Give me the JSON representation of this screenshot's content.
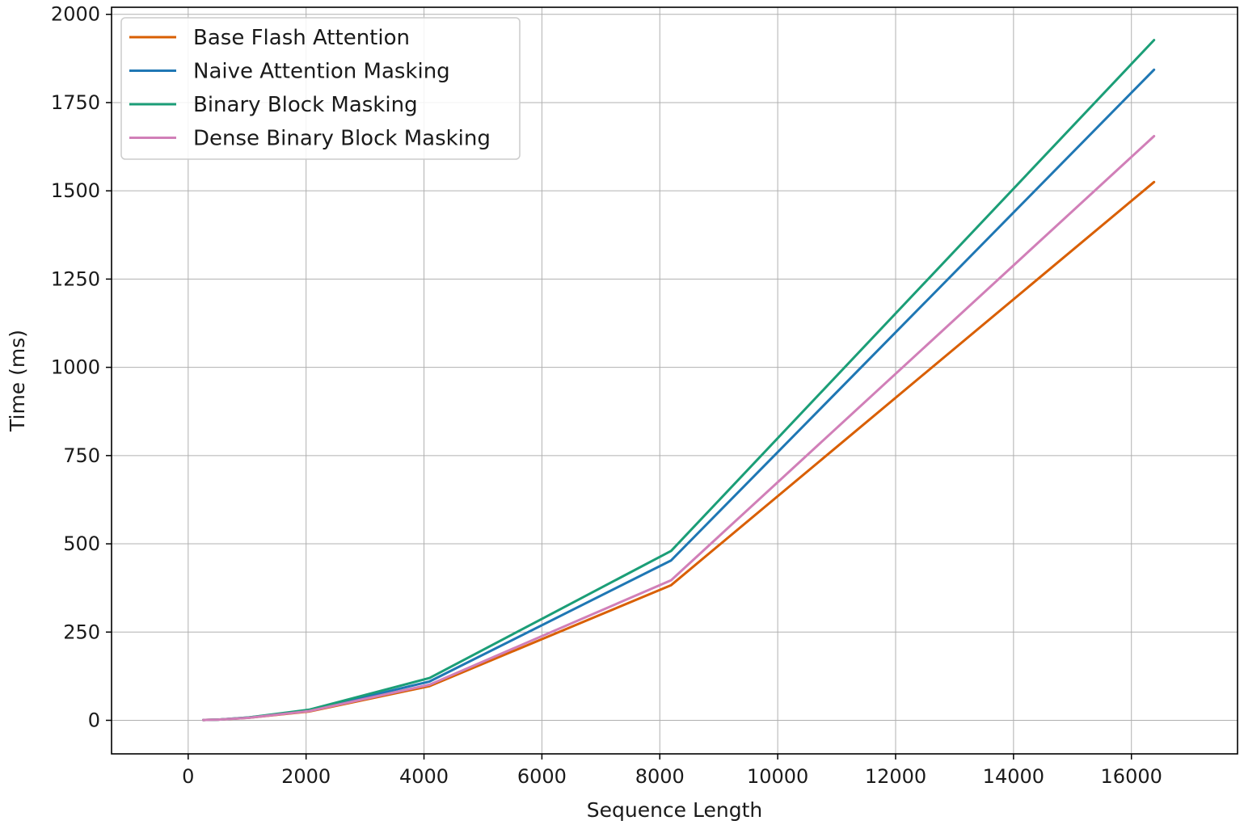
{
  "chart_data": {
    "type": "line",
    "title": "",
    "xlabel": "Sequence Length",
    "ylabel": "Time (ms)",
    "xlim": [
      -1300,
      17800
    ],
    "ylim": [
      -95,
      2020
    ],
    "xticks": [
      0,
      2000,
      4000,
      6000,
      8000,
      10000,
      12000,
      14000,
      16000
    ],
    "yticks": [
      0,
      250,
      500,
      750,
      1000,
      1250,
      1500,
      1750,
      2000
    ],
    "grid": true,
    "legend_position": "upper-left",
    "x": [
      256,
      512,
      1024,
      2048,
      4096,
      8192,
      16384
    ],
    "series": [
      {
        "name": "Base Flash Attention",
        "color": "#d95f02",
        "values": [
          1,
          2,
          7,
          25,
          97,
          383,
          1525
        ]
      },
      {
        "name": "Naive Attention Masking",
        "color": "#1f77b4",
        "values": [
          1,
          2,
          8,
          28,
          110,
          453,
          1843
        ]
      },
      {
        "name": "Binary Block Masking",
        "color": "#1b9e77",
        "values": [
          1,
          2,
          8,
          30,
          120,
          480,
          1927
        ]
      },
      {
        "name": "Dense Binary Block Masking",
        "color": "#d17fb8",
        "values": [
          1,
          2,
          7,
          26,
          101,
          397,
          1655
        ]
      }
    ]
  }
}
